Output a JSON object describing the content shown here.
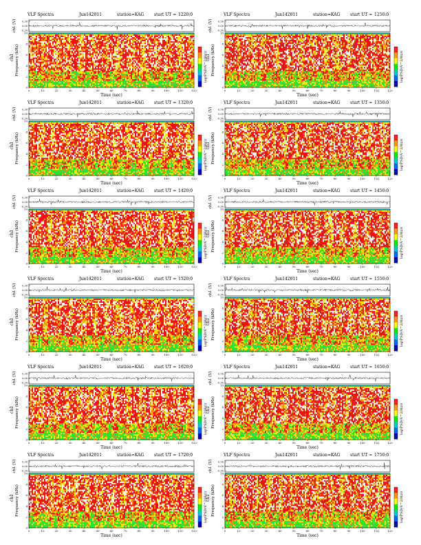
{
  "header": {
    "title": "VLF Spectra",
    "date": "Jun142011",
    "station": "station=KAG",
    "ut_prefix": "start UT ="
  },
  "axis_labels": {
    "ts_ylabel": "ch1 (V)",
    "spec_ylabel": "Frequency (kHz)",
    "channel": "ch1",
    "xlabel": "Time (sec)",
    "colorbar_label": "log(PSD(V^2/Hz))"
  },
  "colors": {
    "saturated": "#ffffff",
    "high": "#ee1111",
    "mid": "#ff8800",
    "low_mid": "#eeee00",
    "low": "#33dd33",
    "lowest": "#00cccc",
    "colorbar": [
      "#ff2020",
      "#ff9900",
      "#ffff00",
      "#00ee00",
      "#00cccc",
      "#0066ff",
      "#0000aa"
    ],
    "background_sample": "#0b3fbf"
  },
  "chart_data": [
    {
      "type": "heatmap",
      "start_ut": "1220:0",
      "time_range_sec": [
        0,
        120
      ],
      "frequency_range_khz": [
        0,
        10
      ],
      "ts_ylim": [
        -0.3,
        0.3
      ],
      "ts_ticks": [
        "0.30",
        "0.00",
        "-0.30"
      ],
      "x_ticks": [
        "0",
        "10",
        "20",
        "30",
        "40",
        "50",
        "60",
        "70",
        "80",
        "90",
        "100",
        "110",
        "120"
      ],
      "y_ticks": [
        "0",
        "2",
        "4",
        "6",
        "8",
        "10"
      ]
    },
    {
      "type": "heatmap",
      "start_ut": "1250:0",
      "time_range_sec": [
        0,
        120
      ],
      "frequency_range_khz": [
        0,
        10
      ],
      "ts_ylim": [
        -0.3,
        0.3
      ],
      "ts_ticks": [
        "0.30",
        "0.00",
        "-0.30"
      ],
      "x_ticks": [
        "0",
        "10",
        "20",
        "30",
        "40",
        "50",
        "60",
        "70",
        "80",
        "90",
        "100",
        "110",
        "120"
      ],
      "y_ticks": [
        "0",
        "2",
        "4",
        "6",
        "8",
        "10"
      ]
    },
    {
      "type": "heatmap",
      "start_ut": "1320:0",
      "time_range_sec": [
        0,
        120
      ],
      "frequency_range_khz": [
        0,
        10
      ],
      "ts_ylim": [
        -0.3,
        0.3
      ],
      "ts_ticks": [
        "0.30",
        "0.00",
        "-0.30"
      ],
      "x_ticks": [
        "0",
        "10",
        "20",
        "30",
        "40",
        "50",
        "60",
        "70",
        "80",
        "90",
        "100",
        "110",
        "120"
      ],
      "y_ticks": [
        "0",
        "2",
        "4",
        "6",
        "8",
        "10"
      ]
    },
    {
      "type": "heatmap",
      "start_ut": "1350:0",
      "time_range_sec": [
        0,
        120
      ],
      "frequency_range_khz": [
        0,
        10
      ],
      "ts_ylim": [
        -0.3,
        0.3
      ],
      "ts_ticks": [
        "0.30",
        "0.00",
        "-0.30"
      ],
      "x_ticks": [
        "0",
        "10",
        "20",
        "30",
        "40",
        "50",
        "60",
        "70",
        "80",
        "90",
        "100",
        "110",
        "120"
      ],
      "y_ticks": [
        "0",
        "2",
        "4",
        "6",
        "8",
        "10"
      ]
    },
    {
      "type": "heatmap",
      "start_ut": "1420:0",
      "time_range_sec": [
        0,
        120
      ],
      "frequency_range_khz": [
        0,
        10
      ],
      "ts_ylim": [
        -0.3,
        0.3
      ],
      "ts_ticks": [
        "0.30",
        "0.00",
        "-0.30"
      ],
      "x_ticks": [
        "0",
        "10",
        "20",
        "30",
        "40",
        "50",
        "60",
        "70",
        "80",
        "90",
        "100",
        "110",
        "120"
      ],
      "y_ticks": [
        "0",
        "2",
        "4",
        "6",
        "8",
        "10"
      ]
    },
    {
      "type": "heatmap",
      "start_ut": "1450:0",
      "time_range_sec": [
        0,
        120
      ],
      "frequency_range_khz": [
        0,
        10
      ],
      "ts_ylim": [
        -0.3,
        0.3
      ],
      "ts_ticks": [
        "0.30",
        "0.00",
        "-0.30"
      ],
      "x_ticks": [
        "0",
        "10",
        "20",
        "30",
        "40",
        "50",
        "60",
        "70",
        "80",
        "90",
        "100",
        "110",
        "120"
      ],
      "y_ticks": [
        "0",
        "2",
        "4",
        "6",
        "8",
        "10"
      ]
    },
    {
      "type": "heatmap",
      "start_ut": "1520:0",
      "time_range_sec": [
        0,
        120
      ],
      "frequency_range_khz": [
        0,
        10
      ],
      "ts_ylim": [
        -0.3,
        0.3
      ],
      "ts_ticks": [
        "0.30",
        "0.00",
        "-0.30"
      ],
      "x_ticks": [
        "0",
        "10",
        "20",
        "30",
        "40",
        "50",
        "60",
        "70",
        "80",
        "90",
        "100",
        "110",
        "120"
      ],
      "y_ticks": [
        "0",
        "2",
        "4",
        "6",
        "8",
        "10"
      ]
    },
    {
      "type": "heatmap",
      "start_ut": "1550:0",
      "time_range_sec": [
        0,
        120
      ],
      "frequency_range_khz": [
        0,
        10
      ],
      "ts_ylim": [
        -0.3,
        0.3
      ],
      "ts_ticks": [
        "0.30",
        "0.00",
        "-0.30"
      ],
      "x_ticks": [
        "0",
        "10",
        "20",
        "30",
        "40",
        "50",
        "60",
        "70",
        "80",
        "90",
        "100",
        "110",
        "120"
      ],
      "y_ticks": [
        "0",
        "2",
        "4",
        "6",
        "8",
        "10"
      ]
    },
    {
      "type": "heatmap",
      "start_ut": "1620:0",
      "time_range_sec": [
        0,
        120
      ],
      "frequency_range_khz": [
        0,
        10
      ],
      "ts_ylim": [
        -0.3,
        0.3
      ],
      "ts_ticks": [
        "0.30",
        "0.00",
        "-0.30"
      ],
      "x_ticks": [
        "0",
        "10",
        "20",
        "30",
        "40",
        "50",
        "60",
        "70",
        "80",
        "90",
        "100",
        "110",
        "120"
      ],
      "y_ticks": [
        "0",
        "2",
        "4",
        "6",
        "8",
        "10"
      ]
    },
    {
      "type": "heatmap",
      "start_ut": "1650:0",
      "time_range_sec": [
        0,
        120
      ],
      "frequency_range_khz": [
        0,
        10
      ],
      "ts_ylim": [
        -0.3,
        0.3
      ],
      "ts_ticks": [
        "0.30",
        "0.00",
        "-0.30"
      ],
      "x_ticks": [
        "0",
        "10",
        "20",
        "30",
        "40",
        "50",
        "60",
        "70",
        "80",
        "90",
        "100",
        "110",
        "120"
      ],
      "y_ticks": [
        "0",
        "2",
        "4",
        "6",
        "8",
        "10"
      ]
    },
    {
      "type": "heatmap",
      "start_ut": "1720:0",
      "time_range_sec": [
        0,
        120
      ],
      "frequency_range_khz": [
        0,
        10
      ],
      "ts_ylim": [
        -0.3,
        0.3
      ],
      "ts_ticks": [
        "0.30",
        "0.00",
        "-0.30"
      ],
      "x_ticks": [
        "0",
        "10",
        "20",
        "30",
        "40",
        "50",
        "60",
        "70",
        "80",
        "90",
        "100",
        "110",
        "120"
      ],
      "y_ticks": [
        "0",
        "2",
        "4",
        "6",
        "8",
        "10"
      ]
    },
    {
      "type": "heatmap",
      "start_ut": "1750:0",
      "time_range_sec": [
        0,
        120
      ],
      "frequency_range_khz": [
        0,
        10
      ],
      "ts_ylim": [
        -0.3,
        0.3
      ],
      "ts_ticks": [
        "0.30",
        "0.00",
        "-0.30"
      ],
      "x_ticks": [
        "0",
        "10",
        "20",
        "30",
        "40",
        "50",
        "60",
        "70",
        "80",
        "90",
        "100",
        "110",
        "120"
      ],
      "y_ticks": [
        "0",
        "2",
        "4",
        "6",
        "8",
        "10"
      ]
    }
  ]
}
